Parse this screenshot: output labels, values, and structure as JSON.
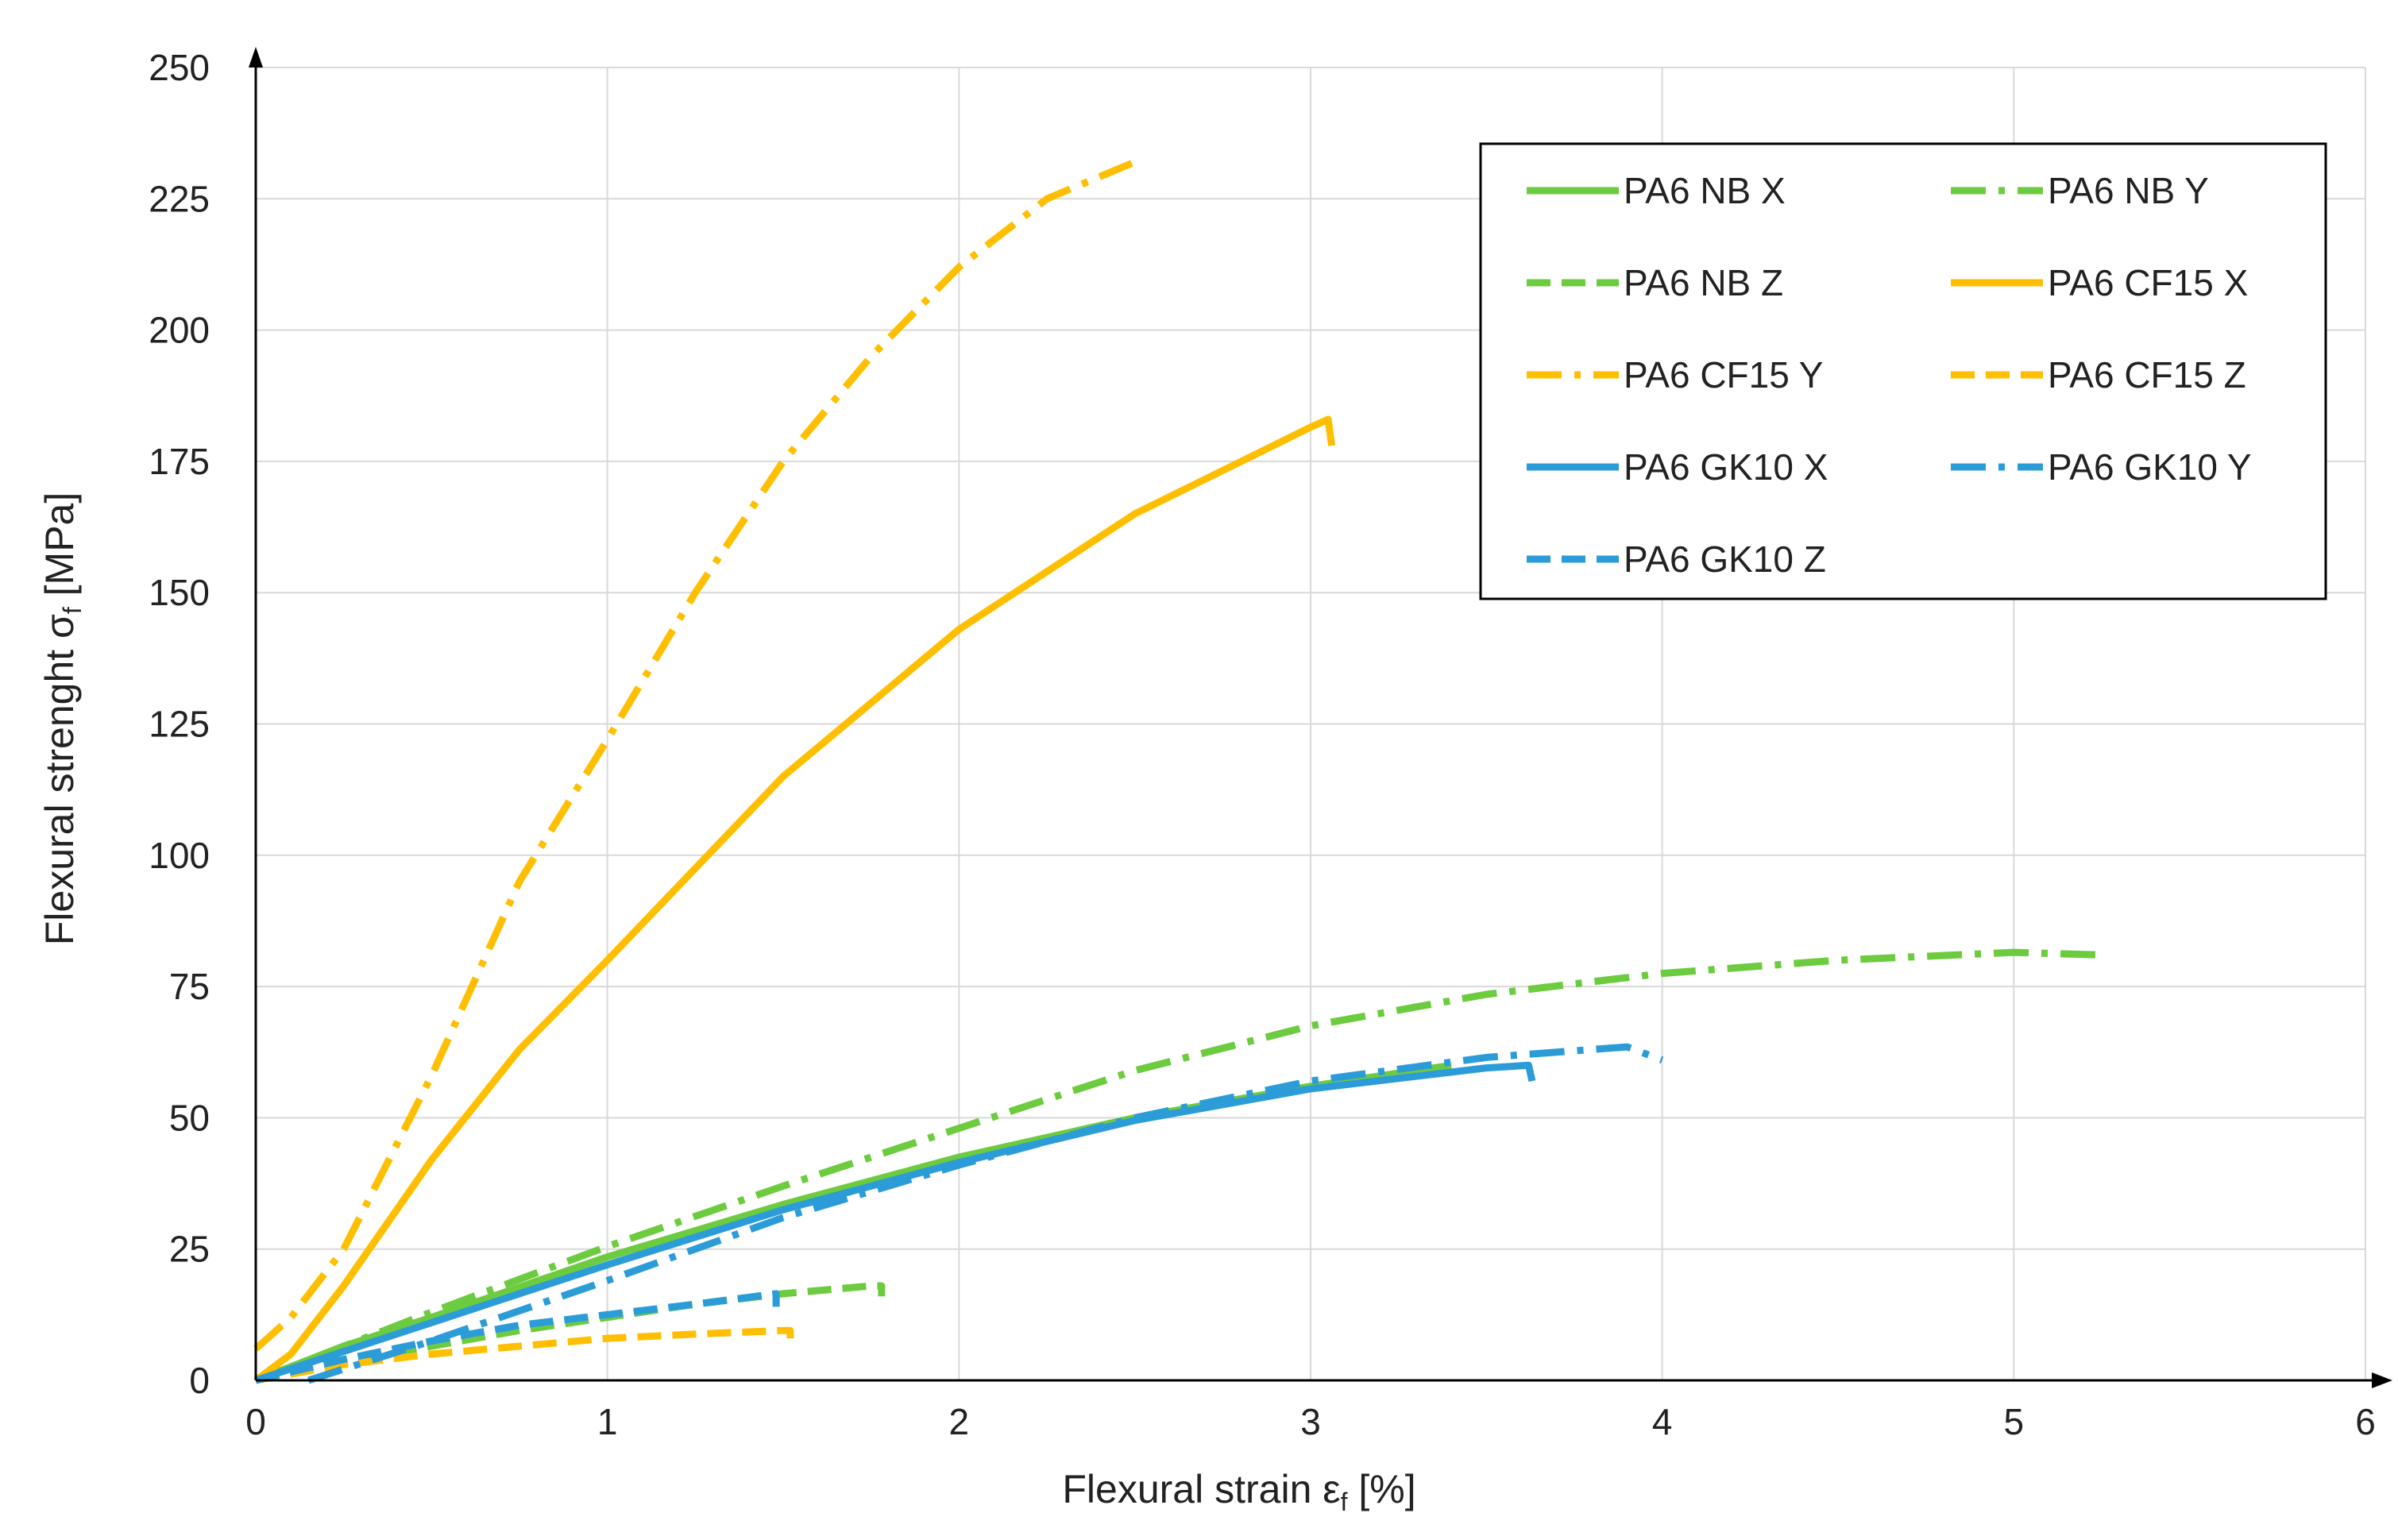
{
  "chart_data": {
    "type": "line",
    "title": "",
    "xlabel": "Flexural strain ε",
    "xlabel_sub": "f",
    "xlabel_unit": " [%]",
    "ylabel": "Flexural strenght σ",
    "ylabel_sub": "f",
    "ylabel_unit": " [MPa]",
    "xlim": [
      0,
      6
    ],
    "ylim": [
      0,
      250
    ],
    "xticks": [
      0,
      1,
      2,
      3,
      4,
      5,
      6
    ],
    "yticks": [
      0,
      25,
      50,
      75,
      100,
      125,
      150,
      175,
      200,
      225,
      250
    ],
    "grid": true,
    "legend_position": "top-right",
    "series": [
      {
        "name": "PA6 NB X",
        "color": "#6CCB3E",
        "dash": "solid",
        "x": [
          0,
          0.25,
          0.5,
          1.0,
          1.5,
          2.0,
          2.5,
          3.0,
          3.4
        ],
        "y": [
          0,
          6.5,
          12,
          23.5,
          33.5,
          42.5,
          50,
          56,
          60
        ]
      },
      {
        "name": "PA6 NB Y",
        "color": "#6CCB3E",
        "dash": "dashdot",
        "x": [
          0,
          0.5,
          1.0,
          1.5,
          2.0,
          2.5,
          3.0,
          3.5,
          4.0,
          4.5,
          5.0,
          5.25
        ],
        "y": [
          0,
          13,
          25.5,
          37,
          48,
          59,
          67.5,
          73.5,
          77.5,
          80,
          81.5,
          81
        ]
      },
      {
        "name": "PA6 NB Z",
        "color": "#6CCB3E",
        "dash": "dashed",
        "x": [
          0,
          0.25,
          0.5,
          0.75,
          1.0,
          1.25,
          1.5,
          1.75,
          1.78,
          1.78
        ],
        "y": [
          0,
          3.5,
          6.5,
          9.5,
          12,
          14.5,
          16.5,
          18,
          18,
          16
        ]
      },
      {
        "name": "PA6 CF15 X",
        "color": "#FFBF00",
        "dash": "solid",
        "x": [
          0,
          0.1,
          0.25,
          0.5,
          0.75,
          1.0,
          1.5,
          2.0,
          2.5,
          3.0,
          3.05,
          3.06
        ],
        "y": [
          0,
          5,
          18,
          42,
          63,
          80,
          115,
          143,
          165,
          181.5,
          183,
          178
        ]
      },
      {
        "name": "PA6 CF15 Y",
        "color": "#FFBF00",
        "dash": "dashdot",
        "x": [
          0,
          0.1,
          0.25,
          0.5,
          0.75,
          1.0,
          1.25,
          1.5,
          1.75,
          2.0,
          2.25,
          2.5
        ],
        "y": [
          6,
          12,
          25,
          58,
          95,
          122,
          150,
          175,
          195,
          212,
          225,
          232
        ]
      },
      {
        "name": "PA6 CF15 Z",
        "color": "#FFBF00",
        "dash": "dashed",
        "x": [
          0,
          0.25,
          0.5,
          0.75,
          1.0,
          1.25,
          1.5,
          1.52,
          1.52
        ],
        "y": [
          0,
          3,
          5,
          6.5,
          8,
          8.8,
          9.5,
          9.5,
          8
        ]
      },
      {
        "name": "PA6 GK10 X",
        "color": "#2C9CD8",
        "dash": "solid",
        "x": [
          0,
          0.25,
          0.5,
          1.0,
          1.5,
          2.0,
          2.5,
          3.0,
          3.5,
          3.62,
          3.63
        ],
        "y": [
          0,
          5.5,
          11,
          22,
          32.5,
          41.5,
          49.5,
          55.5,
          59.5,
          60,
          57
        ]
      },
      {
        "name": "PA6 GK10 Y",
        "color": "#2C9CD8",
        "dash": "dashdot",
        "x": [
          0.15,
          0.5,
          1.0,
          1.5,
          2.0,
          2.5,
          3.0,
          3.5,
          3.9,
          4.0
        ],
        "y": [
          0,
          7.5,
          19,
          31,
          41,
          50,
          57,
          61.5,
          63.5,
          61
        ]
      },
      {
        "name": "PA6 GK10 Z",
        "color": "#2C9CD8",
        "dash": "dashed",
        "x": [
          0,
          0.25,
          0.5,
          0.75,
          1.0,
          1.25,
          1.48,
          1.48
        ],
        "y": [
          0,
          4,
          7.5,
          10.5,
          12.5,
          14.5,
          16.5,
          14
        ]
      }
    ]
  }
}
